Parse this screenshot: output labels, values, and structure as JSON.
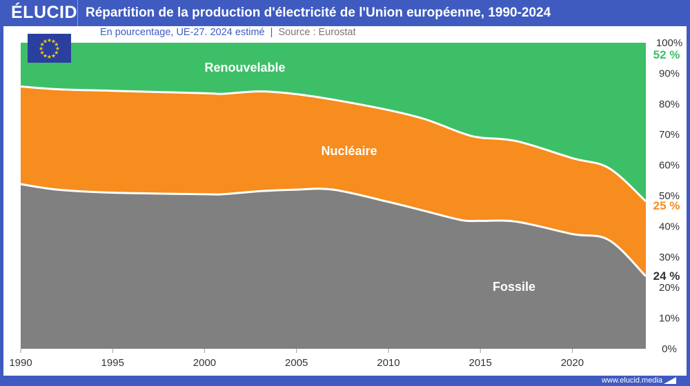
{
  "header": {
    "logo": "ÉLUCID",
    "title": "Répartition de la production d'électricité de l'Union européenne, 1990-2024",
    "subtitle": "En pourcentage, UE-27. 2024 estimé",
    "source": "Source : Eurostat"
  },
  "footer": {
    "url": "www.elucid.media"
  },
  "flag": {
    "icon": "eu-flag-icon",
    "color": "#2a3f9e",
    "star_color": "#f5d000"
  },
  "chart_data": {
    "type": "area",
    "stacked": true,
    "percent": true,
    "x": [
      1990,
      1992,
      1995,
      2000,
      2001,
      2003,
      2005,
      2007,
      2010,
      2012,
      2014,
      2015,
      2017,
      2020,
      2022,
      2024
    ],
    "series": [
      {
        "name": "Fossile",
        "color": "#808080",
        "label_color": "#333333",
        "values": [
          53.8,
          52.0,
          51.0,
          50.5,
          50.5,
          51.5,
          52.0,
          52.0,
          48.0,
          45.0,
          42.0,
          41.8,
          41.5,
          37.5,
          35.5,
          23.7
        ]
      },
      {
        "name": "Nucléaire",
        "color": "#f78c1f",
        "label_color": "#f78c1f",
        "values": [
          31.9,
          32.8,
          33.3,
          33.0,
          32.8,
          32.6,
          31.2,
          29.4,
          30.0,
          30.0,
          28.5,
          27.2,
          26.3,
          24.8,
          23.5,
          24.5
        ]
      },
      {
        "name": "Renouvelable",
        "color": "#3dbf68",
        "label_color": "#3dbf68",
        "values": [
          14.3,
          15.2,
          15.7,
          16.5,
          16.7,
          15.9,
          16.8,
          18.6,
          22.0,
          25.0,
          29.5,
          31.0,
          32.2,
          37.7,
          41.0,
          51.8
        ]
      }
    ],
    "end_labels": [
      "24 %",
      "25 %",
      "52 %"
    ],
    "xlim": [
      1990,
      2024
    ],
    "ylim": [
      0,
      100
    ],
    "x_ticks": [
      "1990",
      "1995",
      "2000",
      "2005",
      "2010",
      "2015",
      "2020"
    ],
    "y_ticks": [
      "0%",
      "10%",
      "20%",
      "30%",
      "40%",
      "50%",
      "60%",
      "70%",
      "80%",
      "90%",
      "100%"
    ],
    "y_axis_position": "right",
    "grid": false
  }
}
